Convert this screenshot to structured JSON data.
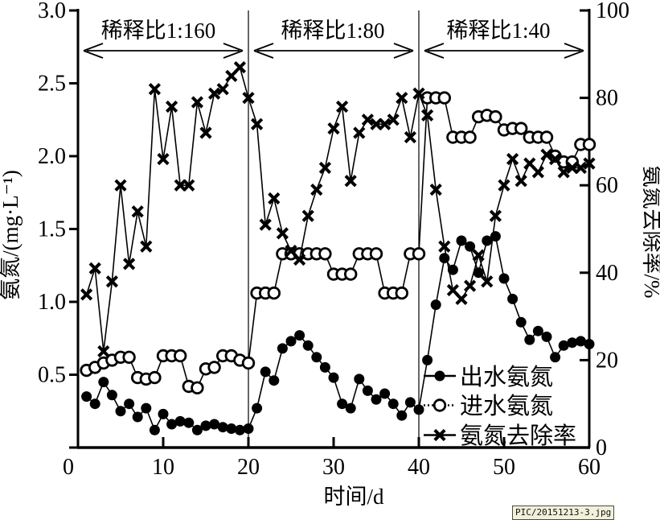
{
  "watermark": {
    "text": "PIC/20151213-3.jpg",
    "bg_color": "#f3f0da"
  },
  "colors": {
    "ink": "#000000",
    "background": "#ffffff"
  },
  "chart_data": {
    "type": "line",
    "title": "",
    "xlabel": "时间/d",
    "ylabel_left": "氨氮/(mg·L⁻¹)",
    "ylabel_right": "氨氮去除率/%",
    "xlim": [
      0,
      60
    ],
    "ylim_left": [
      0,
      3.0
    ],
    "ylim_right": [
      0,
      100
    ],
    "grid": false,
    "legend_position": "inside-bottom-right",
    "x_ticks": [
      10,
      20,
      30,
      40,
      50,
      60
    ],
    "x_origin_label": "0",
    "y_left_ticks": [
      {
        "value": 0.0,
        "label": "0"
      },
      {
        "value": 0.5,
        "label": "0.5"
      },
      {
        "value": 1.0,
        "label": "1.0"
      },
      {
        "value": 1.5,
        "label": "1.5"
      },
      {
        "value": 2.0,
        "label": "2.0"
      },
      {
        "value": 2.5,
        "label": "2.5"
      },
      {
        "value": 3.0,
        "label": "3.0"
      }
    ],
    "y_right_ticks": [
      {
        "value": 0,
        "label": "0"
      },
      {
        "value": 20,
        "label": "20"
      },
      {
        "value": 40,
        "label": "40"
      },
      {
        "value": 60,
        "label": "60"
      },
      {
        "value": 80,
        "label": "80"
      },
      {
        "value": 100,
        "label": "100"
      }
    ],
    "regions": [
      {
        "label": "稀释比1:160",
        "x_start": 0,
        "x_end": 20
      },
      {
        "label": "稀释比1:80",
        "x_start": 20,
        "x_end": 40
      },
      {
        "label": "稀释比1:40",
        "x_start": 40,
        "x_end": 60
      }
    ],
    "boundary_lines_x": [
      20,
      40
    ],
    "x": [
      1,
      2,
      3,
      4,
      5,
      6,
      7,
      8,
      9,
      10,
      11,
      12,
      13,
      14,
      15,
      16,
      17,
      18,
      19,
      20,
      21,
      22,
      23,
      24,
      25,
      26,
      27,
      28,
      29,
      30,
      31,
      32,
      33,
      34,
      35,
      36,
      37,
      38,
      39,
      40,
      41,
      42,
      43,
      44,
      45,
      46,
      47,
      48,
      49,
      50,
      51,
      52,
      53,
      54,
      55,
      56,
      57,
      58,
      59,
      60
    ],
    "series": [
      {
        "name": "出水氨氮",
        "axis": "left",
        "marker": "filled-circle",
        "line": "solid",
        "values": [
          0.35,
          0.3,
          0.45,
          0.36,
          0.25,
          0.3,
          0.21,
          0.27,
          0.12,
          0.23,
          0.16,
          0.18,
          0.17,
          0.12,
          0.15,
          0.16,
          0.14,
          0.13,
          0.12,
          0.13,
          0.27,
          0.52,
          0.46,
          0.68,
          0.73,
          0.77,
          0.7,
          0.62,
          0.55,
          0.48,
          0.3,
          0.27,
          0.47,
          0.39,
          0.33,
          0.37,
          0.3,
          0.22,
          0.31,
          0.26,
          0.6,
          0.98,
          1.3,
          1.22,
          1.42,
          1.38,
          1.2,
          1.42,
          1.45,
          1.16,
          1.02,
          0.86,
          0.74,
          0.8,
          0.76,
          0.62,
          0.7,
          0.72,
          0.73,
          0.71
        ]
      },
      {
        "name": "进水氨氮",
        "axis": "left",
        "marker": "open-circle",
        "line": "solid",
        "values": [
          0.53,
          0.55,
          0.58,
          0.6,
          0.62,
          0.62,
          0.48,
          0.47,
          0.48,
          0.63,
          0.63,
          0.63,
          0.42,
          0.41,
          0.54,
          0.55,
          0.63,
          0.63,
          0.6,
          0.58,
          1.06,
          1.06,
          1.06,
          1.33,
          1.33,
          1.33,
          1.33,
          1.33,
          1.33,
          1.19,
          1.19,
          1.19,
          1.33,
          1.33,
          1.33,
          1.06,
          1.06,
          1.06,
          1.33,
          1.33,
          2.4,
          2.4,
          2.4,
          2.13,
          2.13,
          2.13,
          2.27,
          2.28,
          2.27,
          2.18,
          2.19,
          2.19,
          2.13,
          2.13,
          2.13,
          2.0,
          1.96,
          1.96,
          2.08,
          2.08
        ]
      },
      {
        "name": "氨氮去除率",
        "axis": "right",
        "marker": "x",
        "line": "solid",
        "values": [
          35,
          41,
          22,
          38,
          60,
          42,
          54,
          46,
          82,
          66,
          78,
          60,
          60,
          79,
          72,
          81,
          82,
          85,
          87,
          80,
          74,
          51,
          57,
          49,
          45,
          43,
          53,
          59,
          64,
          73,
          78,
          61,
          72,
          75,
          74,
          74,
          75,
          80,
          71,
          81,
          76,
          59,
          46,
          36,
          34,
          37,
          44,
          38,
          53,
          60,
          66,
          61,
          65,
          63,
          67,
          66,
          63,
          64,
          64,
          65
        ]
      }
    ]
  }
}
